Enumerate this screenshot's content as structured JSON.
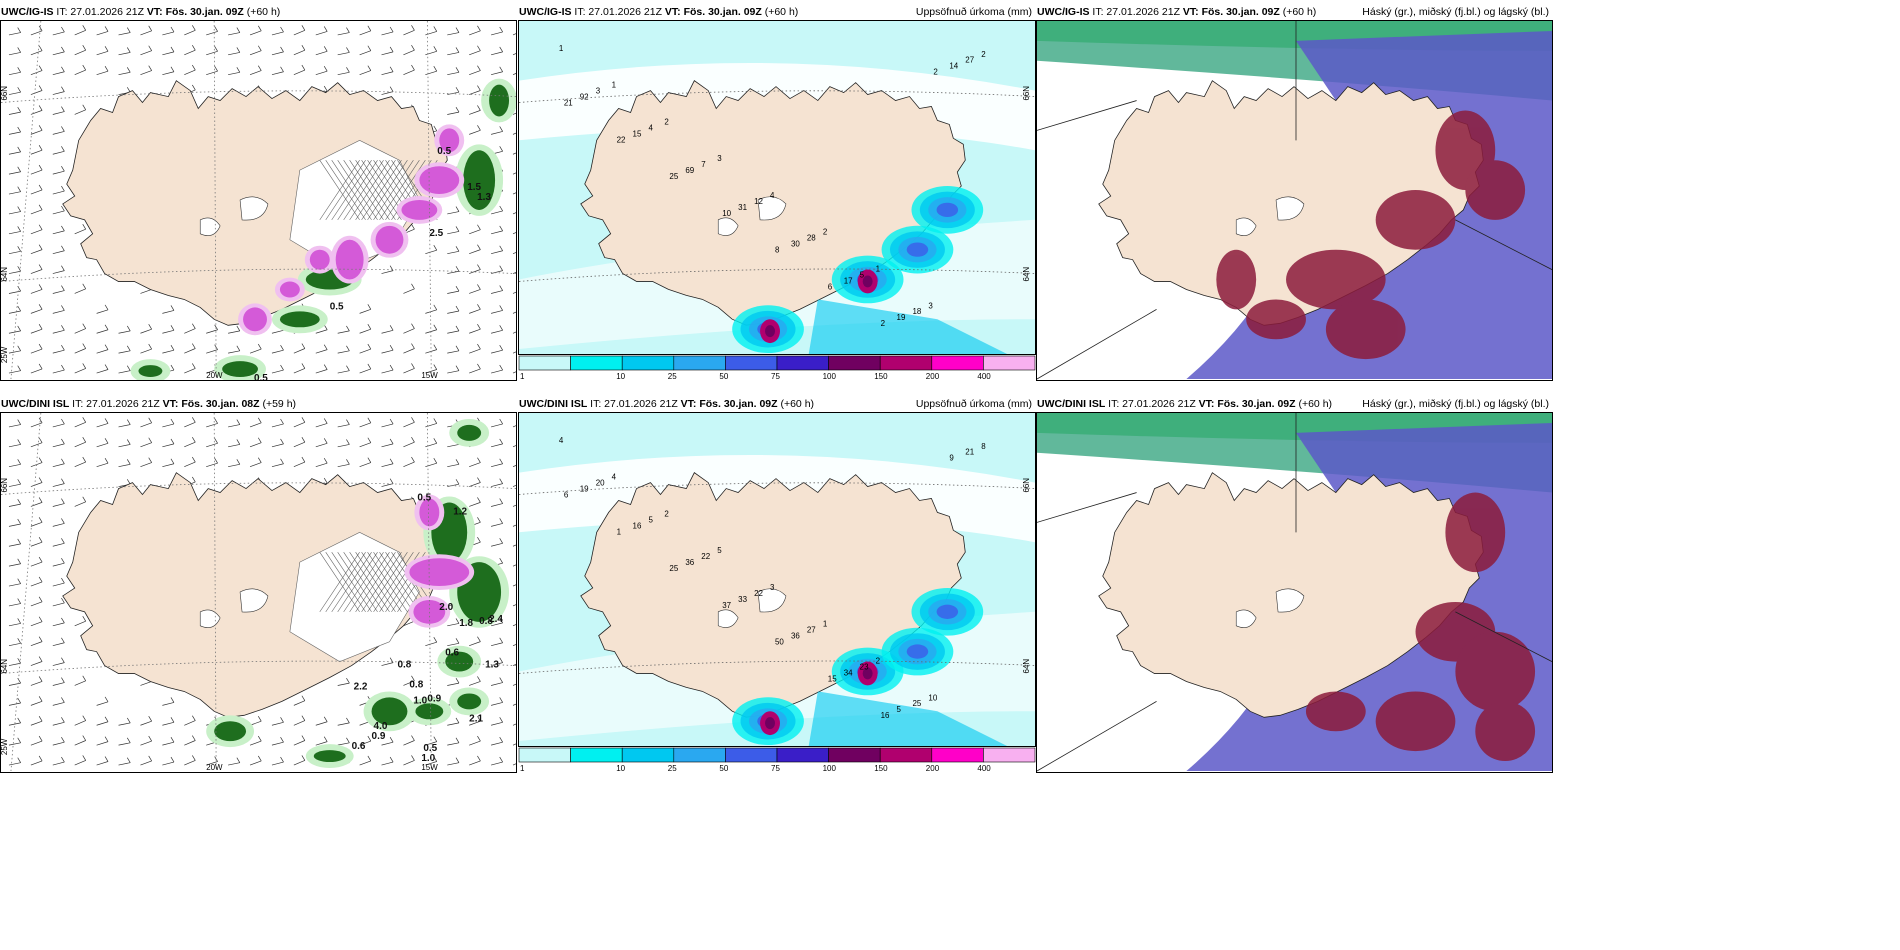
{
  "panels": [
    {
      "model": "UWC/IG-IS",
      "it": "IT: 27.01.2026 21Z",
      "vt_label": "VT:",
      "vt": "Fös. 30.jan. 09Z",
      "lead": "(+60 h)",
      "right": ""
    },
    {
      "model": "UWC/IG-IS",
      "it": "IT: 27.01.2026 21Z",
      "vt_label": "VT:",
      "vt": "Fös. 30.jan. 09Z",
      "lead": "(+60 h)",
      "right": "Uppsöfnuð úrkoma (mm)"
    },
    {
      "model": "UWC/IG-IS",
      "it": "IT: 27.01.2026 21Z",
      "vt_label": "VT:",
      "vt": "Fös. 30.jan. 09Z",
      "lead": "(+60 h)",
      "right": "Háský (gr.), miðský (fj.bl.) og lágský (bl.)"
    },
    {
      "model": "UWC/DINI ISL",
      "it": "IT: 27.01.2026 21Z",
      "vt_label": "VT:",
      "vt": "Fös. 30.jan. 08Z",
      "lead": "(+59 h)",
      "right": ""
    },
    {
      "model": "UWC/DINI ISL",
      "it": "IT: 27.01.2026 21Z",
      "vt_label": "VT:",
      "vt": "Fös. 30.jan. 09Z",
      "lead": "(+60 h)",
      "right": "Uppsöfnuð úrkoma (mm)"
    },
    {
      "model": "UWC/DINI ISL",
      "it": "IT: 27.01.2026 21Z",
      "vt_label": "VT:",
      "vt": "Fös. 30.jan. 09Z",
      "lead": "(+60 h)",
      "right": "Háský (gr.), miðský (fj.bl.) og lágský (bl.)"
    }
  ],
  "grid_labels": {
    "lat66": "66N",
    "lat64": "64N",
    "lon20": "20W",
    "lon15": "15W",
    "lon25": "25W"
  },
  "precip_scale": {
    "ticks": [
      "1",
      "10",
      "25",
      "50",
      "75",
      "100",
      "150",
      "200",
      "400"
    ],
    "colors": [
      "#c8f8f8",
      "#00f0f0",
      "#00c8f0",
      "#2aa8f0",
      "#3c5ce8",
      "#3a1ec8",
      "#700060",
      "#b0006e",
      "#ff00c8",
      "#f8b0f0"
    ]
  },
  "colors": {
    "land": "#f5e3d2",
    "sea": "#ffffff",
    "precip_light": "#c8f8f8",
    "snow_green": "#1e6e1e",
    "snow_pink": "#d45ad8",
    "cloud_high": "#2ca07a",
    "cloud_mid": "#5c58c8",
    "cloud_low": "#8c1c3c"
  },
  "upper_precip_values": [
    "1",
    "1",
    "2",
    "3",
    "4",
    "2",
    "1",
    "3",
    "2",
    "3",
    "4",
    "7",
    "12",
    "28",
    "5",
    "18",
    "27",
    "92",
    "15",
    "69",
    "31",
    "30",
    "17",
    "19",
    "14",
    "21",
    "22",
    "25",
    "10",
    "8",
    "6",
    "2",
    "2"
  ],
  "lower_precip_values": [
    "4",
    "4",
    "2",
    "5",
    "3",
    "1",
    "2",
    "10",
    "8",
    "20",
    "5",
    "22",
    "22",
    "27",
    "23",
    "25",
    "21",
    "19",
    "16",
    "36",
    "33",
    "36",
    "34",
    "5",
    "9",
    "6",
    "1",
    "25",
    "37",
    "50",
    "15",
    "16"
  ],
  "upper_snow_values": [
    "0.5",
    "0.5",
    "0.5",
    "1.3",
    "2.5",
    "1.5"
  ],
  "lower_snow_values": [
    "0.5",
    "1.2",
    "2.0",
    "0.8",
    "0.8",
    "0.8",
    "0.9",
    "1.0",
    "2.2",
    "4.0",
    "0.9",
    "0.6",
    "0.5",
    "1.0",
    "2.1",
    "2.4",
    "1.8",
    "1.3",
    "0.6"
  ]
}
